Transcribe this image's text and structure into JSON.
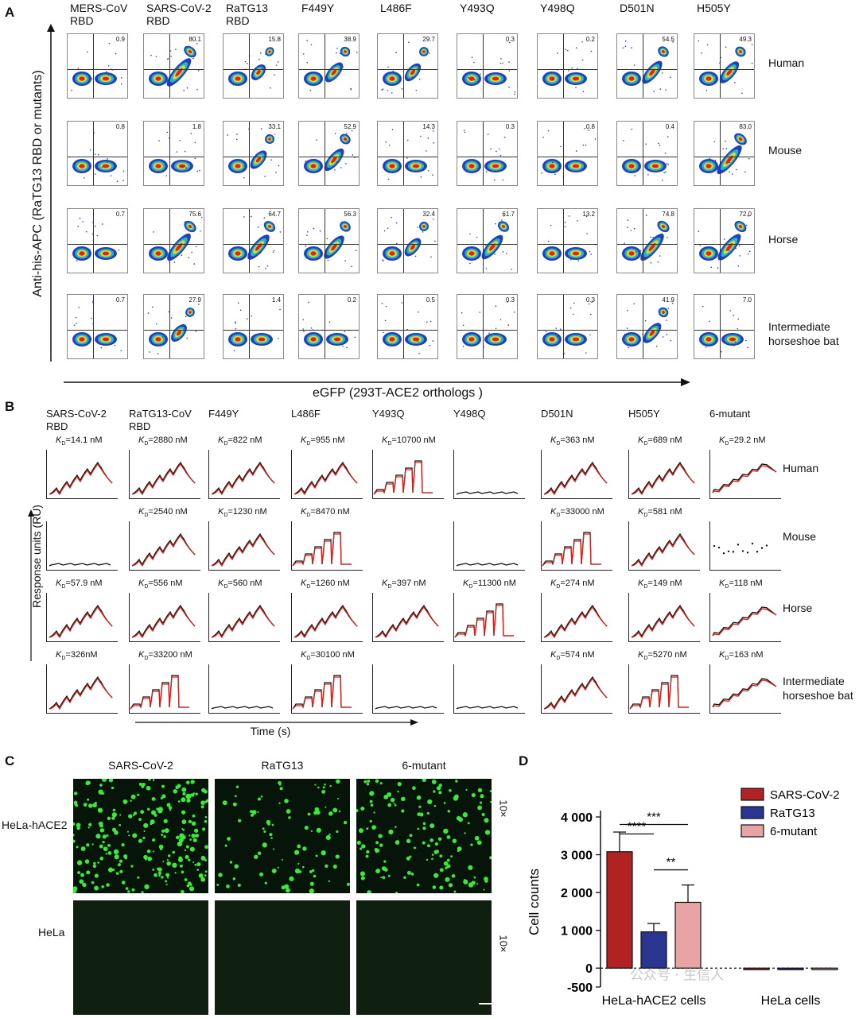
{
  "panels": {
    "A": "A",
    "B": "B",
    "C": "C",
    "D": "D"
  },
  "panelA": {
    "col_headers": [
      [
        "MERS-CoV",
        "RBD"
      ],
      [
        "SARS-CoV-2",
        "RBD"
      ],
      [
        "RaTG13",
        "RBD"
      ],
      [
        "F449Y",
        ""
      ],
      [
        "L486F",
        ""
      ],
      [
        "Y493Q",
        ""
      ],
      [
        "Y498Q",
        ""
      ],
      [
        "D501N",
        ""
      ],
      [
        "H505Y",
        ""
      ]
    ],
    "row_labels": [
      "Human",
      "Mouse",
      "Horse",
      "Intermediate horseshoe bat"
    ],
    "percentages": [
      [
        "0.9",
        "80.1",
        "15.8",
        "38.9",
        "29.7",
        "0.3",
        "0.2",
        "54.5",
        "49.3"
      ],
      [
        "0.8",
        "1.8",
        "33.1",
        "52.9",
        "14.3",
        "0.3",
        "0.8",
        "0.4",
        "83.0"
      ],
      [
        "0.7",
        "75.6",
        "64.7",
        "56.3",
        "32.4",
        "61.7",
        "13.2",
        "74.8",
        "72.0"
      ],
      [
        "0.7",
        "27.9",
        "1.4",
        "0.2",
        "0.5",
        "0.3",
        "0.3",
        "41.9",
        "7.0"
      ]
    ],
    "binding_level": [
      [
        0,
        0.8,
        0.2,
        0.4,
        0.3,
        0,
        0,
        0.55,
        0.5
      ],
      [
        0,
        0.02,
        0.33,
        0.53,
        0.14,
        0,
        0,
        0,
        0.83
      ],
      [
        0,
        0.76,
        0.65,
        0.56,
        0.32,
        0.62,
        0.13,
        0.75,
        0.72
      ],
      [
        0,
        0.28,
        0.01,
        0,
        0,
        0,
        0,
        0.42,
        0.07
      ]
    ],
    "ylabel": "Anti-his-APC (RaTG13 RBD or mutants)",
    "xlabel": "eGFP (293T-ACE2 orthologs )"
  },
  "panelB": {
    "col_headers": [
      [
        "SARS-CoV-2",
        "RBD"
      ],
      [
        "RaTG13-CoV",
        "RBD"
      ],
      [
        "F449Y",
        ""
      ],
      [
        "L486F",
        ""
      ],
      [
        "Y493Q",
        ""
      ],
      [
        "Y498Q",
        ""
      ],
      [
        "D501N",
        ""
      ],
      [
        "H505Y",
        ""
      ],
      [
        "6-mutant",
        ""
      ]
    ],
    "row_labels": [
      "Human",
      "Mouse",
      "Horse",
      "Intermediate horseshoe bat"
    ],
    "kd": [
      [
        "14.1 nM",
        "2880 nM",
        "822 nM",
        "955 nM",
        "10700 nM",
        "",
        "363 nM",
        "689 nM",
        "29.2 nM"
      ],
      [
        "",
        "2540 nM",
        "1230 nM",
        "8470 nM",
        "",
        "",
        "33000 nM",
        "581 nM",
        ""
      ],
      [
        "57.9 nM",
        "556 nM",
        "560 nM",
        "1260 nM",
        "397 nM",
        "11300 nM",
        "274 nM",
        "149 nM",
        "118 nM"
      ],
      [
        "326nM",
        "33200 nM",
        "",
        "30100 nM",
        "",
        "",
        "574 nM",
        "5270 nM",
        "163 nM"
      ]
    ],
    "curve_type": [
      [
        "slow",
        "slow",
        "slow",
        "slow",
        "fast",
        "flat",
        "slow",
        "slow",
        "single"
      ],
      [
        "flat",
        "slow",
        "slow",
        "fast",
        "none",
        "flat",
        "fast",
        "slow",
        "dots"
      ],
      [
        "slow",
        "slow",
        "slow",
        "slow",
        "slow",
        "fast",
        "slow",
        "slow",
        "single"
      ],
      [
        "slow",
        "fast",
        "flat",
        "fast",
        "flat",
        "flat",
        "slow",
        "fast",
        "single"
      ]
    ],
    "ylabel": "Response units (RU)",
    "xlabel": "Time (s)"
  },
  "panelC": {
    "col_headers": [
      "SARS-CoV-2",
      "RaTG13",
      "6-mutant"
    ],
    "row_labels": [
      "HeLa-hACE2",
      "HeLa"
    ],
    "magnification": "10×",
    "dot_density": [
      [
        0.9,
        0.35,
        0.55
      ],
      [
        0,
        0,
        0
      ]
    ]
  },
  "panelD": {
    "chart_data": {
      "type": "bar",
      "categories": [
        "HeLa-hACE2 cells",
        "HeLa cells"
      ],
      "series": [
        {
          "name": "SARS-CoV-2",
          "values": [
            3080,
            -30
          ],
          "errors": [
            520,
            0
          ],
          "color": "#b22222"
        },
        {
          "name": "RaTG13",
          "values": [
            960,
            -30
          ],
          "errors": [
            220,
            0
          ],
          "color": "#2a3590"
        },
        {
          "name": "6-mutant",
          "values": [
            1740,
            -30
          ],
          "errors": [
            460,
            0
          ],
          "color": "#e8a3a5"
        }
      ],
      "xlabel": "",
      "ylabel": "Cell counts",
      "ylim": [
        -500,
        4000
      ],
      "yticks": [
        "4 000",
        "3 000",
        "2 000",
        "1 000",
        "0",
        "-500"
      ],
      "ytick_values": [
        4000,
        3000,
        2000,
        1000,
        0,
        -500
      ],
      "significance": [
        "***",
        "****",
        "**"
      ]
    },
    "watermark": "公众号 · 生信人"
  }
}
